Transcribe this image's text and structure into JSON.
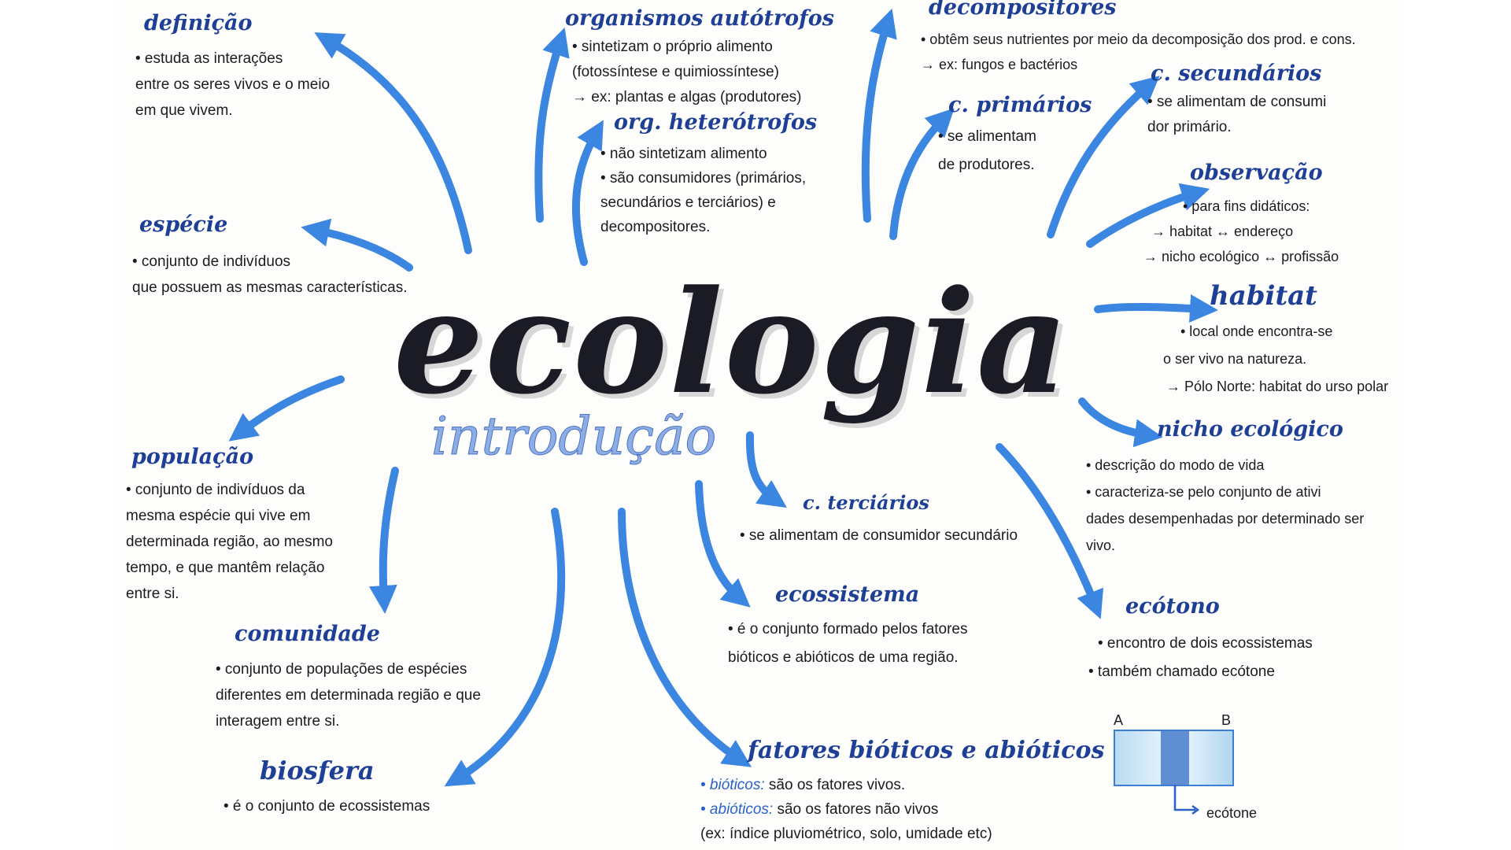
{
  "title": "ecologia",
  "subtitle": "introdução",
  "colors": {
    "accent": "#3a86e0",
    "title_ink": "#1b1b26",
    "heading_ink": "#1e3f96"
  },
  "topics": {
    "definicao": {
      "heading": "definição",
      "lines": [
        "• estuda as interações",
        "entre os seres vivos e o meio",
        "em que vivem."
      ]
    },
    "especie": {
      "heading": "espécie",
      "lines": [
        "• conjunto de indivíduos",
        "que possuem as mesmas características."
      ]
    },
    "populacao": {
      "heading": "população",
      "lines": [
        "• conjunto de indivíduos da",
        "mesma espécie qui vive em",
        "determinada região, ao mesmo",
        "tempo, e que mantêm relação",
        "entre si."
      ]
    },
    "comunidade": {
      "heading": "comunidade",
      "lines": [
        "• conjunto de populações de espécies",
        "diferentes em determinada região e que",
        "interagem entre si."
      ]
    },
    "biosfera": {
      "heading": "biosfera",
      "lines": [
        "• é o conjunto de ecossistemas"
      ]
    },
    "autotrofos": {
      "heading": "organismos autótrofos",
      "lines": [
        "• sintetizam o próprio alimento",
        "(fotossíntese e quimiossíntese)",
        "→ ex: plantas e algas (produtores)"
      ]
    },
    "heterotrofos": {
      "heading": "org. heterótrofos",
      "lines": [
        "• não sintetizam alimento",
        "• são consumidores (primários,",
        "secundários e terciários) e",
        "decompositores."
      ]
    },
    "decompositores": {
      "heading": "decompositores",
      "lines": [
        "• obtêm seus nutrientes por meio da decomposição dos prod. e cons.",
        "→ ex: fungos e bactérios"
      ]
    },
    "primarios": {
      "heading": "c. primários",
      "lines": [
        "• se alimentam",
        "de produtores."
      ]
    },
    "secundarios": {
      "heading": "c. secundários",
      "lines": [
        "• se alimentam de consumi",
        "dor primário."
      ]
    },
    "observacao": {
      "heading": "observação",
      "lines": [
        "• para fins didáticos:",
        "→ habitat ↔ endereço",
        "→ nicho ecológico ↔ profissão"
      ]
    },
    "habitat": {
      "heading": "habitat",
      "lines": [
        "• local onde encontra-se",
        "o ser vivo na natureza.",
        "→ Pólo Norte: habitat do urso polar"
      ]
    },
    "nicho": {
      "heading": "nicho ecológico",
      "lines": [
        "• descrição do modo de vida",
        "• caracteriza-se pelo conjunto de ativi",
        "dades desempenhadas por determinado ser",
        "vivo."
      ]
    },
    "terciarios": {
      "heading": "c. terciários",
      "lines": [
        "• se alimentam de consumidor secundário"
      ]
    },
    "ecossistema": {
      "heading": "ecossistema",
      "lines": [
        "• é o conjunto formado pelos fatores",
        "bióticos e abióticos de uma região."
      ]
    },
    "ecotono": {
      "heading": "ecótono",
      "lines": [
        "• encontro de dois ecossistemas",
        "• também chamado ecótone"
      ]
    },
    "fatores": {
      "heading": "fatores bióticos e abióticos",
      "lines": [
        {
          "label": "• bióticos:",
          "text": "são os fatores vivos."
        },
        {
          "label": "• abióticos:",
          "text": "são os fatores não vivos"
        },
        {
          "label": "",
          "text": "(ex: índice pluviométrico, solo, umidade etc)"
        }
      ]
    }
  },
  "ecotone_diagram": {
    "label_a": "A",
    "label_b": "B",
    "caption": "ecótone"
  }
}
